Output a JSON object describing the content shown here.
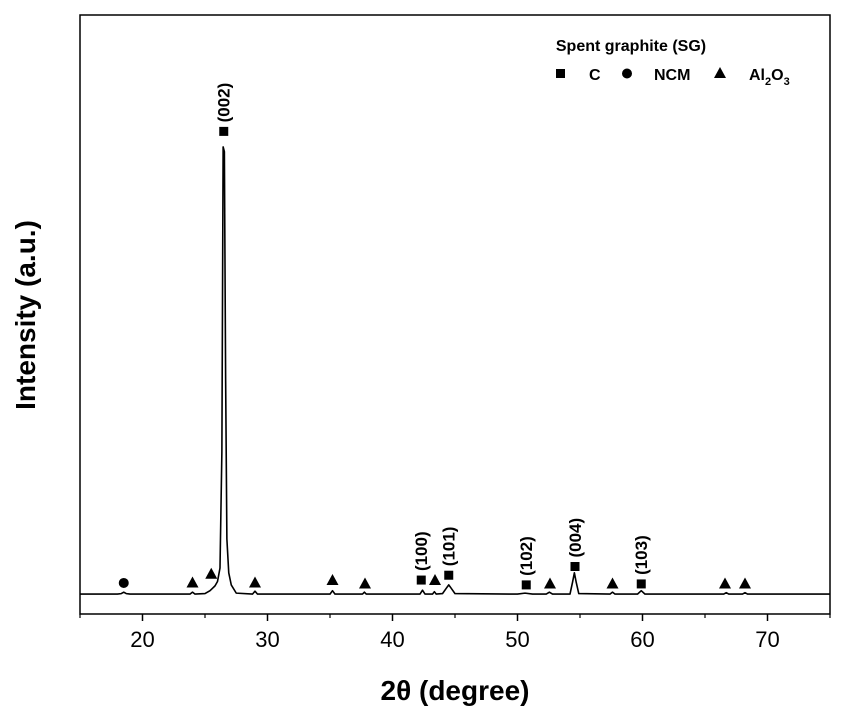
{
  "chart_data": {
    "type": "line",
    "title": "",
    "xlabel": "2θ (degree)",
    "ylabel": "Intensity (a.u.)",
    "xlim": [
      15,
      75
    ],
    "ylim": [
      0,
      100
    ],
    "xticks": [
      20,
      30,
      40,
      50,
      60,
      70
    ],
    "yticks": [],
    "grid": false,
    "legend": {
      "title": "Spent graphite (SG)",
      "placement": "top-right",
      "entries": [
        {
          "marker": "square",
          "label": "C"
        },
        {
          "marker": "circle",
          "label": "NCM"
        },
        {
          "marker": "triangle",
          "label_parts": [
            "Al",
            "2",
            "O",
            "3"
          ]
        }
      ]
    },
    "series": [
      {
        "name": "Spent graphite (SG)",
        "color": "#000000",
        "x": [
          15,
          18,
          18.3,
          18.5,
          18.7,
          19,
          23.8,
          24,
          24.2,
          25.0,
          25.4,
          25.6,
          25.8,
          26.0,
          26.2,
          26.35,
          26.45,
          26.55,
          26.65,
          26.75,
          26.9,
          27.1,
          27.5,
          28.8,
          29.0,
          29.2,
          35.0,
          35.2,
          35.4,
          37.6,
          37.75,
          37.9,
          42.2,
          42.4,
          42.6,
          43.2,
          43.35,
          43.5,
          44.0,
          44.3,
          44.5,
          44.7,
          45.0,
          50.0,
          50.6,
          51.2,
          52.3,
          52.55,
          52.8,
          54.2,
          54.4,
          54.55,
          54.7,
          54.9,
          57.4,
          57.6,
          57.8,
          59.6,
          59.9,
          60.2,
          66.5,
          66.7,
          66.9,
          68.0,
          68.2,
          68.4,
          75
        ],
        "y": [
          0.6,
          0.6,
          0.7,
          1.0,
          0.7,
          0.6,
          0.6,
          1.0,
          0.6,
          0.7,
          1.3,
          1.8,
          2.3,
          3.2,
          6,
          30,
          93,
          92,
          45,
          12,
          5,
          2.5,
          0.8,
          0.6,
          1.2,
          0.6,
          0.6,
          1.3,
          0.6,
          0.6,
          1.0,
          0.6,
          0.6,
          1.4,
          0.6,
          0.6,
          1.1,
          0.6,
          0.7,
          1.8,
          2.5,
          1.8,
          0.7,
          0.6,
          0.8,
          0.6,
          0.6,
          1.0,
          0.6,
          0.6,
          3.0,
          5.0,
          3.0,
          0.7,
          0.6,
          1.0,
          0.6,
          0.6,
          1.3,
          0.6,
          0.6,
          0.9,
          0.6,
          0.6,
          0.9,
          0.6,
          0.6
        ]
      }
    ],
    "annotations": [
      {
        "x": 18.5,
        "y": 2.9,
        "marker": "circle",
        "label": ""
      },
      {
        "x": 24.0,
        "y": 3.0,
        "marker": "triangle",
        "label": ""
      },
      {
        "x": 25.5,
        "y": 4.8,
        "marker": "triangle",
        "label": ""
      },
      {
        "x": 29.0,
        "y": 3.0,
        "marker": "triangle",
        "label": ""
      },
      {
        "x": 35.2,
        "y": 3.5,
        "marker": "triangle",
        "label": ""
      },
      {
        "x": 37.8,
        "y": 2.8,
        "marker": "triangle",
        "label": ""
      },
      {
        "x": 43.4,
        "y": 3.5,
        "marker": "triangle",
        "label": ""
      },
      {
        "x": 52.6,
        "y": 2.8,
        "marker": "triangle",
        "label": ""
      },
      {
        "x": 57.6,
        "y": 2.8,
        "marker": "triangle",
        "label": ""
      },
      {
        "x": 66.6,
        "y": 2.8,
        "marker": "triangle",
        "label": ""
      },
      {
        "x": 68.2,
        "y": 2.8,
        "marker": "triangle",
        "label": ""
      },
      {
        "x": 26.5,
        "y": 96.2,
        "marker": "square",
        "label": "(002)"
      },
      {
        "x": 42.3,
        "y": 3.5,
        "marker": "square",
        "label": "(100)"
      },
      {
        "x": 44.5,
        "y": 4.5,
        "marker": "square",
        "label": "(101)"
      },
      {
        "x": 50.7,
        "y": 2.5,
        "marker": "square",
        "label": "(102)"
      },
      {
        "x": 54.6,
        "y": 6.3,
        "marker": "square",
        "label": "(004)"
      },
      {
        "x": 59.9,
        "y": 2.7,
        "marker": "square",
        "label": "(103)"
      }
    ]
  }
}
